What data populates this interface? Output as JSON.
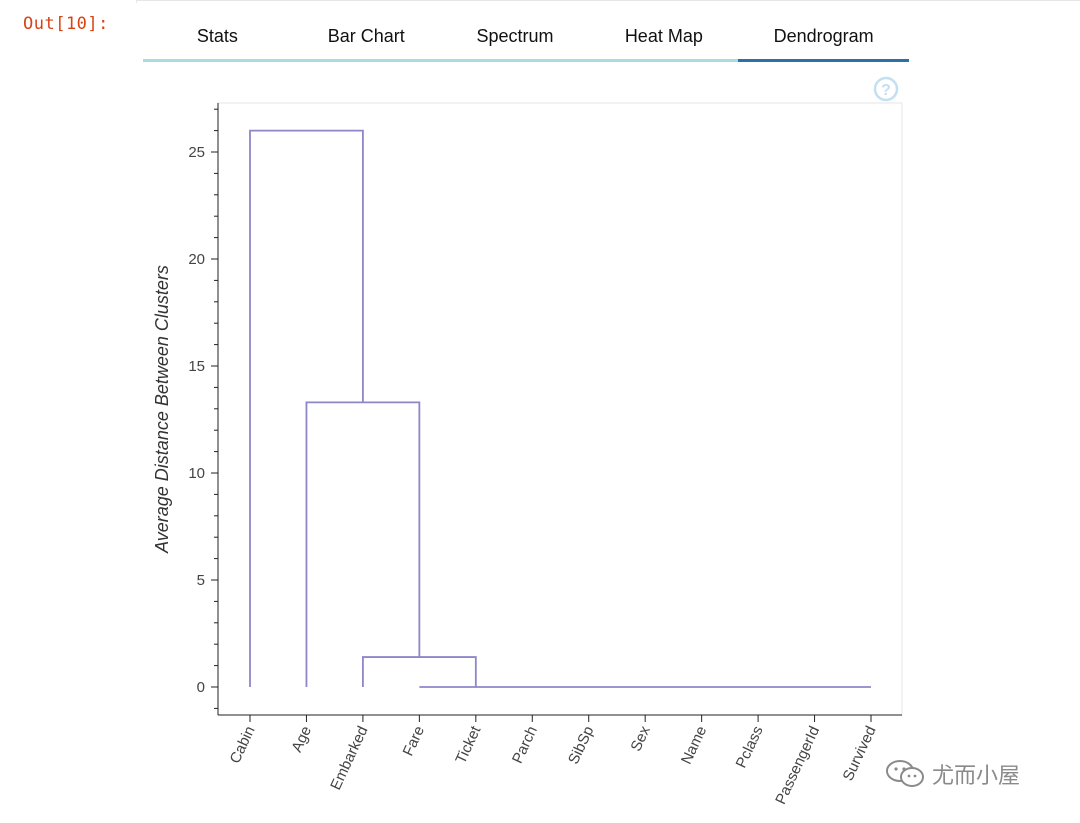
{
  "output_prompt": "Out[10]:",
  "tabs": [
    {
      "label": "Stats"
    },
    {
      "label": "Bar Chart"
    },
    {
      "label": "Spectrum"
    },
    {
      "label": "Heat Map"
    },
    {
      "label": "Dendrogram",
      "active": true
    }
  ],
  "help_icon": "question-circle-icon",
  "watermark": {
    "text": "尤而小屋",
    "icon": "wechat-icon"
  },
  "colors": {
    "prompt": "#d84315",
    "tab_underline": "#a7dde0",
    "tab_active": "#2a71a6",
    "link": "#8d86c9",
    "help": "#c3dff2"
  },
  "chart_data": {
    "type": "dendrogram",
    "ylabel": "Average Distance Between Clusters",
    "ylim": [
      -1.3,
      27.3
    ],
    "yticks": [
      0,
      5,
      10,
      15,
      20,
      25
    ],
    "leaves": [
      "Cabin",
      "Age",
      "Embarked",
      "Fare",
      "Ticket",
      "Parch",
      "SibSp",
      "Sex",
      "Name",
      "Pclass",
      "PassengerId",
      "Survived"
    ],
    "merges": [
      {
        "left": [
          "Ticket",
          "Parch",
          "SibSp",
          "Sex",
          "Name",
          "Pclass",
          "PassengerId",
          "Survived"
        ],
        "left_x": 3,
        "right_x": 11,
        "height": 0
      },
      {
        "left": [
          "Embarked"
        ],
        "left_x": 2,
        "right_x": 4,
        "height": 1.4
      },
      {
        "left": [
          "Age"
        ],
        "left_x": 1,
        "right_x": 3,
        "height": 13.3
      },
      {
        "left": [
          "Cabin"
        ],
        "left_x": 0,
        "right_x": 2,
        "height": 26
      }
    ],
    "links": [
      {
        "x0": 3,
        "x1": 11,
        "y_left": 0,
        "y_right": 0,
        "height": 0
      },
      {
        "x0": 2,
        "x1": 4,
        "y_left": 0,
        "y_right": 0,
        "height": 1.4
      },
      {
        "x0": 1,
        "x1": 3,
        "y_left": 0,
        "y_right": 1.4,
        "height": 13.3
      },
      {
        "x0": 0,
        "x1": 2,
        "y_left": 0,
        "y_right": 13.3,
        "height": 26
      }
    ]
  }
}
